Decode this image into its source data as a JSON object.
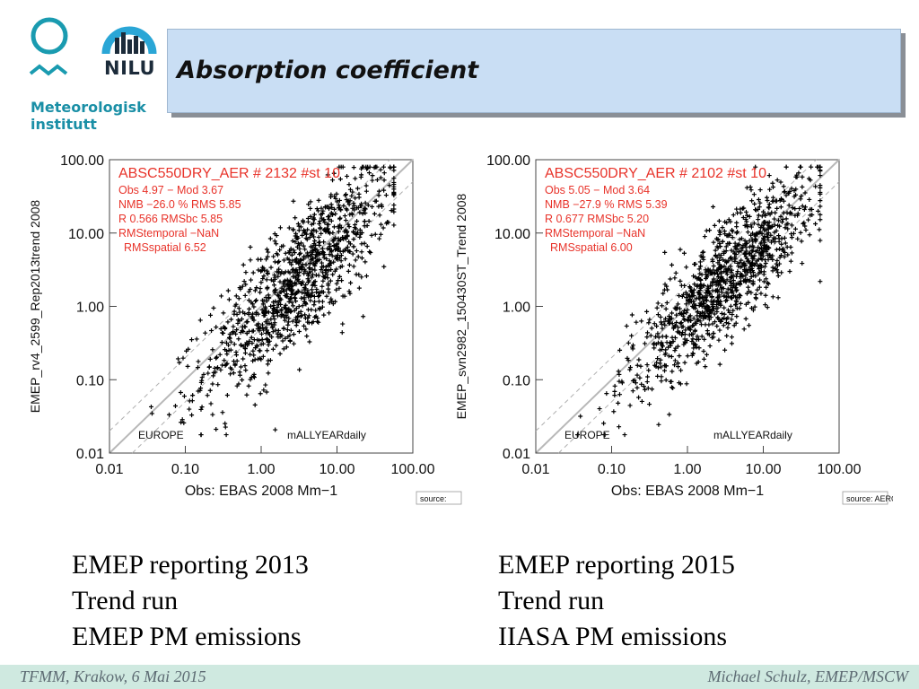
{
  "header": {
    "title": "Absorption coefficient",
    "logo_met_text": [
      "Meteorologisk",
      "institutt"
    ],
    "logo_nilu_text": "NILU"
  },
  "chart_data": [
    {
      "type": "scatter",
      "xlabel": "Obs: EBAS 2008 Mm−1",
      "ylabel": "EMEP_rv4_2599_Rep2013trend 2008",
      "xscale": "log",
      "yscale": "log",
      "xlim": [
        0.01,
        100
      ],
      "ylim": [
        0.01,
        100
      ],
      "xticks": [
        "0.01",
        "0.10",
        "1.00",
        "10.00",
        "100.00"
      ],
      "yticks": [
        "0.01",
        "0.10",
        "1.00",
        "10.00",
        "100.00"
      ],
      "stats_color": "#e8332a",
      "stats": [
        "ABSC550DRY_AER   # 2132 #st 10",
        "Obs  4.97        − Mod  3.67",
        "NMB  −26.0 %  RMS   5.85",
        "R   0.566      RMSbc   5.85",
        "RMStemporal   −NaN",
        "RMSspatial   6.52"
      ],
      "region": "EUROPE",
      "period": "mALLYEARdaily",
      "source": "source:",
      "n_points": 2132,
      "obs_mean": 4.97,
      "mod_mean": 3.67,
      "nmb_pct": -26.0,
      "rms": 5.85,
      "r": 0.566,
      "rmsbc": 5.85,
      "rms_spatial": 6.52,
      "log10_x_center": 0.5,
      "log10_spread": 0.45
    },
    {
      "type": "scatter",
      "xlabel": "Obs: EBAS 2008 Mm−1",
      "ylabel": "EMEP_svn2982_150430ST_Trend 2008",
      "xscale": "log",
      "yscale": "log",
      "xlim": [
        0.01,
        100
      ],
      "ylim": [
        0.01,
        100
      ],
      "xticks": [
        "0.01",
        "0.10",
        "1.00",
        "10.00",
        "100.00"
      ],
      "yticks": [
        "0.01",
        "0.10",
        "1.00",
        "10.00",
        "100.00"
      ],
      "stats_color": "#e8332a",
      "stats": [
        "ABSC550DRY_AER  # 2102 #st 10",
        "Obs 5.05      − Mod 3.64",
        "NMB  −27.9 % RMS  5.39",
        "R  0.677    RMSbc  5.20",
        "RMStemporal  −NaN",
        "RMSspatial  6.00"
      ],
      "region": "EUROPE",
      "period": "mALLYEARdaily",
      "source": "source: AEROCOM",
      "n_points": 2102,
      "obs_mean": 5.05,
      "mod_mean": 3.64,
      "nmb_pct": -27.9,
      "rms": 5.39,
      "r": 0.677,
      "rmsbc": 5.2,
      "rms_spatial": 6.0,
      "log10_x_center": 0.5,
      "log10_spread": 0.38
    }
  ],
  "captions": [
    [
      "EMEP reporting 2013",
      "Trend run",
      "EMEP PM emissions"
    ],
    [
      "EMEP reporting 2015",
      "Trend run",
      "IIASA PM emissions"
    ]
  ],
  "footer": {
    "left": "TFMM, Krakow, 6 Mai 2015",
    "right": "Michael Schulz, EMEP/MSCW"
  }
}
